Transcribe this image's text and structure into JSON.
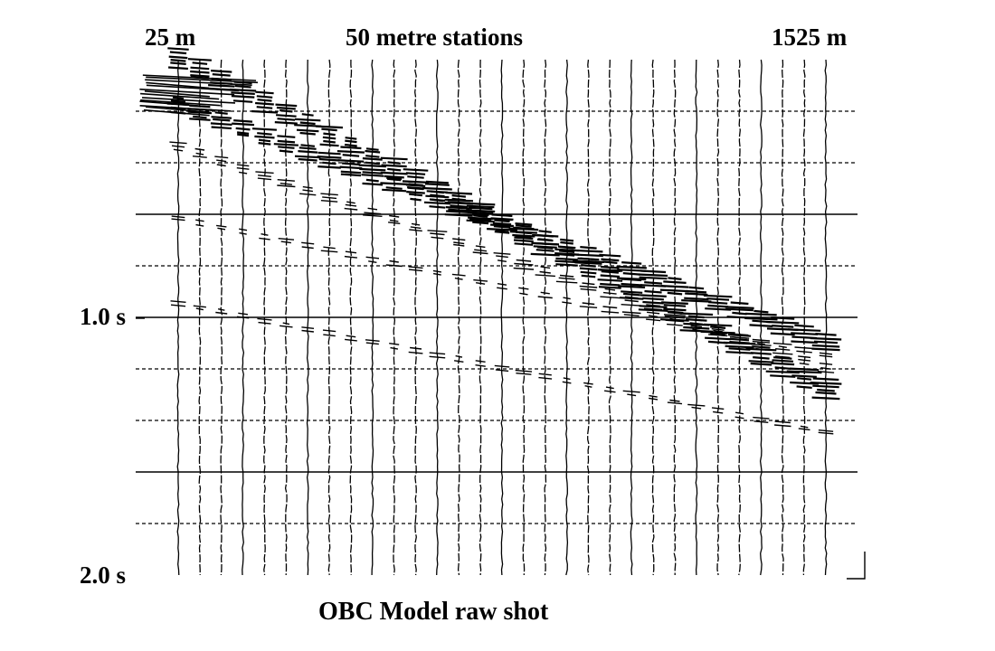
{
  "labels": {
    "offset_start": "25 m",
    "station_spacing": "50 metre stations",
    "offset_end": "1525 m",
    "time_1": "1.0 s",
    "time_2": "2.0 s",
    "caption": "OBC  Model raw shot"
  },
  "plot": {
    "trace_count": 31,
    "offset_range_m": [
      25,
      1525
    ],
    "time_range_s": [
      0,
      2.0
    ],
    "solid_time_lines_s": [
      0.6,
      1.0,
      1.6
    ],
    "dashed_time_lines_s": [
      0.2,
      0.4,
      0.8,
      1.2,
      1.4,
      1.8
    ],
    "events": [
      {
        "name": "direct-arrival",
        "t0_s": 0.0,
        "t_end_s": 1.28,
        "strength": 1.0
      },
      {
        "name": "water-multiple",
        "t0_s": 0.18,
        "t_end_s": 1.1,
        "strength": 0.9
      },
      {
        "name": "reflection-1",
        "t0_s": 0.34,
        "t_end_s": 1.2,
        "strength": 0.5
      },
      {
        "name": "reflection-2",
        "t0_s": 0.62,
        "t_end_s": 1.15,
        "strength": 0.35
      },
      {
        "name": "reflection-3",
        "t0_s": 0.95,
        "t_end_s": 1.45,
        "strength": 0.3
      }
    ],
    "ink_color": "#000000",
    "background": "#ffffff"
  }
}
